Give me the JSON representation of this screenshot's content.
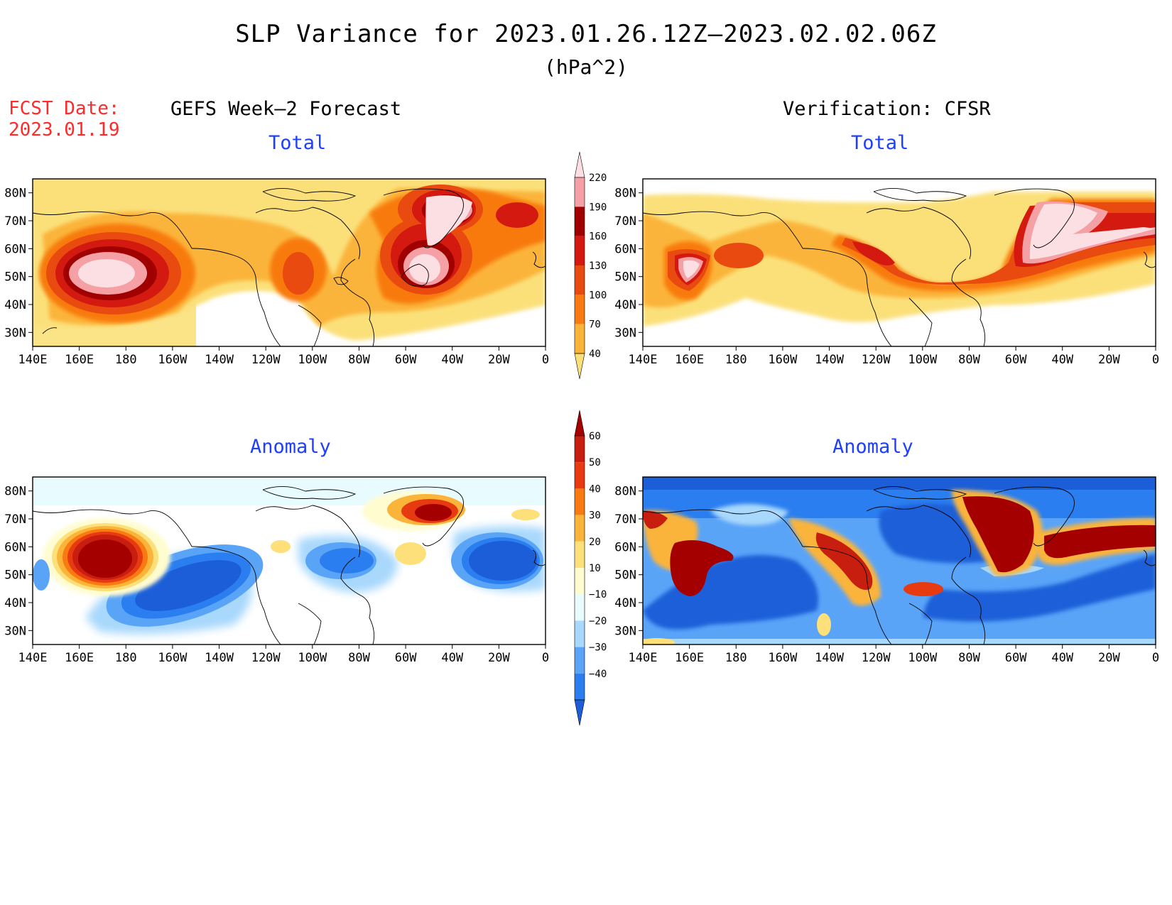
{
  "title": "SLP Variance for 2023.01.26.12Z–2023.02.02.06Z",
  "units": "(hPa^2)",
  "forecast_date": {
    "label": "FCST Date:",
    "value": "2023.01.19"
  },
  "columns": {
    "left": "GEFS Week–2 Forecast",
    "right": "Verification: CFSR"
  },
  "panel_titles": {
    "total": "Total",
    "anomaly": "Anomaly"
  },
  "axes": {
    "x_ticks": [
      "140E",
      "160E",
      "180",
      "160W",
      "140W",
      "120W",
      "100W",
      "80W",
      "60W",
      "40W",
      "20W",
      "0"
    ],
    "y_ticks": [
      "30N",
      "40N",
      "50N",
      "60N",
      "70N",
      "80N"
    ]
  },
  "colorbars": {
    "total": {
      "levels": [
        "40",
        "70",
        "100",
        "130",
        "160",
        "190",
        "220"
      ],
      "colors": [
        "#fbe07a",
        "#fbb43a",
        "#f87a10",
        "#e84a10",
        "#d41a10",
        "#a00000",
        "#f4a0a4",
        "#fcdfe2"
      ]
    },
    "anomaly": {
      "levels": [
        "−40",
        "−30",
        "−20",
        "−10",
        "10",
        "20",
        "30",
        "40",
        "50",
        "60"
      ],
      "colors": [
        "#1c5ed8",
        "#2a7ef0",
        "#5aa4f8",
        "#a8d8fc",
        "#e8fbff",
        "#fffcd0",
        "#fde07a",
        "#fbb43a",
        "#f87a10",
        "#e83a10",
        "#c81e10",
        "#a50000"
      ]
    }
  },
  "colors": {
    "forecast_date": "#ff2a2a",
    "panel_title": "#1f3fff"
  }
}
